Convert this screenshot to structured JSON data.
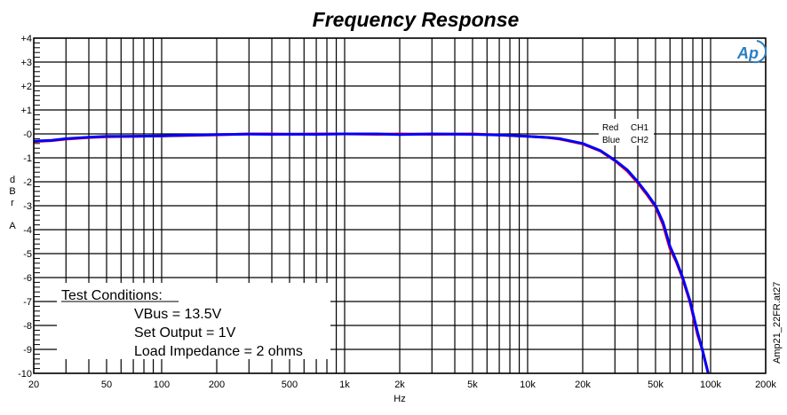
{
  "chart_data": {
    "type": "line",
    "title": "Frequency Response",
    "xlabel": "Hz",
    "ylabel": [
      "d",
      "B",
      "r",
      "",
      "A"
    ],
    "xscale": "log",
    "xlim": [
      20,
      200000
    ],
    "ylim": [
      -10,
      4
    ],
    "grid": true,
    "x_tick_labels": [
      {
        "v": 20,
        "t": "20"
      },
      {
        "v": 50,
        "t": "50"
      },
      {
        "v": 100,
        "t": "100"
      },
      {
        "v": 200,
        "t": "200"
      },
      {
        "v": 500,
        "t": "500"
      },
      {
        "v": 1000,
        "t": "1k"
      },
      {
        "v": 2000,
        "t": "2k"
      },
      {
        "v": 5000,
        "t": "5k"
      },
      {
        "v": 10000,
        "t": "10k"
      },
      {
        "v": 20000,
        "t": "20k"
      },
      {
        "v": 50000,
        "t": "50k"
      },
      {
        "v": 100000,
        "t": "100k"
      },
      {
        "v": 200000,
        "t": "200k"
      }
    ],
    "y_tick_labels": [
      {
        "v": 4,
        "t": "+4"
      },
      {
        "v": 3,
        "t": "+3"
      },
      {
        "v": 2,
        "t": "+2"
      },
      {
        "v": 1,
        "t": "+1"
      },
      {
        "v": 0,
        "t": "-0"
      },
      {
        "v": -1,
        "t": "-1"
      },
      {
        "v": -2,
        "t": "-2"
      },
      {
        "v": -3,
        "t": "-3"
      },
      {
        "v": -4,
        "t": "-4"
      },
      {
        "v": -5,
        "t": "-5"
      },
      {
        "v": -6,
        "t": "-6"
      },
      {
        "v": -7,
        "t": "-7"
      },
      {
        "v": -8,
        "t": "-8"
      },
      {
        "v": -9,
        "t": "-9"
      },
      {
        "v": -10,
        "t": "-10"
      }
    ],
    "legend": {
      "placement": "top-right",
      "entries": [
        {
          "color_name": "Red",
          "label": "CH1"
        },
        {
          "color_name": "Blue",
          "label": "CH2"
        }
      ]
    },
    "series": [
      {
        "name": "CH1",
        "color": "#ff0000",
        "x": [
          20,
          25,
          30,
          40,
          50,
          70,
          100,
          150,
          200,
          250,
          300,
          400,
          500,
          700,
          1000,
          1500,
          2000,
          3000,
          5000,
          7000,
          10000,
          13000,
          15000,
          20000,
          25000,
          30000,
          35000,
          40000,
          45000,
          50000,
          55000,
          60000,
          65000,
          70000,
          77000,
          85000,
          90000,
          97000
        ],
        "y": [
          -0.32,
          -0.28,
          -0.22,
          -0.15,
          -0.12,
          -0.1,
          -0.08,
          -0.06,
          -0.04,
          -0.02,
          0,
          0,
          -0.02,
          0,
          0,
          -0.02,
          0,
          -0.02,
          0,
          -0.05,
          -0.1,
          -0.15,
          -0.22,
          -0.42,
          -0.72,
          -1.12,
          -1.55,
          -2.05,
          -2.55,
          -3.05,
          -3.8,
          -4.8,
          -5.35,
          -6.0,
          -7.0,
          -8.4,
          -9.0,
          -10
        ]
      },
      {
        "name": "CH2",
        "color": "#0000ff",
        "x": [
          20,
          25,
          30,
          40,
          50,
          70,
          100,
          150,
          200,
          250,
          300,
          400,
          500,
          700,
          1000,
          1500,
          2000,
          3000,
          5000,
          7000,
          10000,
          13000,
          15000,
          20000,
          25000,
          30000,
          35000,
          40000,
          45000,
          50000,
          55000,
          60000,
          65000,
          70000,
          77000,
          85000,
          90000,
          97000
        ],
        "y": [
          -0.3,
          -0.27,
          -0.2,
          -0.14,
          -0.1,
          -0.1,
          -0.08,
          -0.05,
          -0.03,
          -0.02,
          -0.01,
          -0.02,
          -0.01,
          -0.02,
          0,
          0,
          -0.03,
          0,
          -0.02,
          -0.05,
          -0.1,
          -0.15,
          -0.2,
          -0.4,
          -0.7,
          -1.1,
          -1.5,
          -2.0,
          -2.5,
          -3.0,
          -3.7,
          -4.7,
          -5.3,
          -5.95,
          -6.95,
          -8.3,
          -9.0,
          -10
        ]
      }
    ]
  },
  "annotations": {
    "test_conditions_title": "Test Conditions:",
    "lines": [
      "VBus = 13.5V",
      "Set Output = 1V",
      "Load Impedance = 2 ohms"
    ],
    "file_label": "Amp21_22FR.at27",
    "logo": "Ap"
  }
}
